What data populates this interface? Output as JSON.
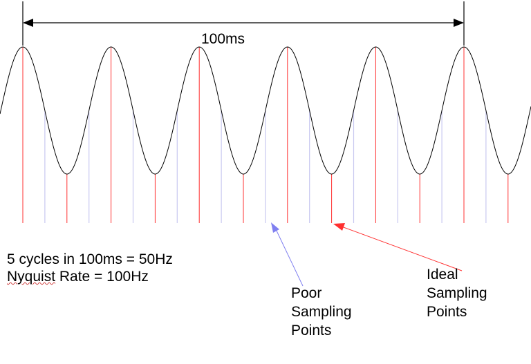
{
  "colors": {
    "wave": "#000000",
    "ideal_sample": "#ff3030",
    "poor_sample": "#c8c8f0",
    "poor_arrow": "#8080f0",
    "ideal_arrow": "#ff3030"
  },
  "diagram": {
    "period_label": "100ms",
    "info_line1": "5 cycles in 100ms = ",
    "info_freq": "50Hz",
    "info_line2_word": "Nyquist",
    "info_line2_rest": " Rate = 100Hz",
    "poor_label_1": "Poor",
    "poor_label_2": "Sampling",
    "poor_label_3": "Points",
    "ideal_label_1": "Ideal",
    "ideal_label_2": "Sampling",
    "ideal_label_3": "Points"
  }
}
